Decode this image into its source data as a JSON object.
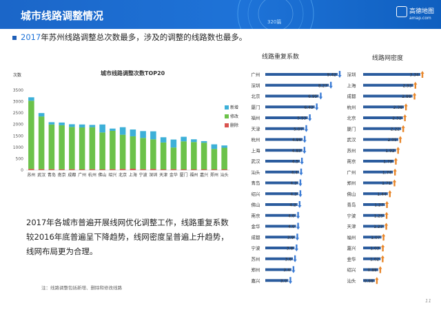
{
  "header": {
    "title": "城市线路调整情况",
    "deco_text": "320篇",
    "logo_name": "高德地图",
    "logo_url": "amap.com"
  },
  "headline": {
    "year": "2017",
    "rest": "年苏州线路调整总次数最多，涉及的调整的线路数也最多。"
  },
  "paragraph": "2017年各城市普遍开展线网优化调整工作，线路重复系数较2016年底普遍呈下降趋势，线网密度呈普遍上升趋势，线网布局更为合理。",
  "footnote": "注：线路调整包括新增、删除和修改线路",
  "page_number": "11",
  "colors": {
    "new": "#3db0d8",
    "modify": "#6cc24a",
    "delete": "#d9534f",
    "bar_blue": "#2b5c9e",
    "down_arrow": "#3a7bd5",
    "up_arrow": "#e8862a"
  },
  "chart_data": [
    {
      "type": "bar",
      "stacked": true,
      "title": "城市线路调整次数TOP20",
      "ylabel": "次数",
      "ylim": [
        0,
        3500
      ],
      "yticks": [
        0,
        500,
        1000,
        1500,
        2000,
        2500,
        3000,
        3500
      ],
      "legend_position": "right",
      "categories": [
        "苏州",
        "武汉",
        "青岛",
        "南京",
        "成都",
        "广州",
        "杭州",
        "佛山",
        "绍兴",
        "北京",
        "上海",
        "宁波",
        "深圳",
        "天津",
        "金华",
        "厦门",
        "福州",
        "嘉兴",
        "郑州",
        "汕头"
      ],
      "series": [
        {
          "name": "删除",
          "values": [
            50,
            40,
            40,
            35,
            40,
            30,
            40,
            30,
            40,
            50,
            60,
            40,
            50,
            30,
            40,
            30,
            30,
            30,
            30,
            30
          ]
        },
        {
          "name": "修改",
          "values": [
            2990,
            2310,
            1960,
            1930,
            1850,
            1840,
            1840,
            1620,
            1680,
            1500,
            1420,
            1370,
            1300,
            1180,
            950,
            1230,
            1200,
            1170,
            900,
            950
          ]
        },
        {
          "name": "新增",
          "values": [
            150,
            150,
            100,
            120,
            120,
            130,
            100,
            350,
            100,
            330,
            300,
            300,
            350,
            230,
            350,
            200,
            120,
            70,
            200,
            100
          ]
        }
      ]
    },
    {
      "type": "bar",
      "orientation": "horizontal",
      "title": "线路重复系数",
      "trend": "down",
      "categories": [
        "广州",
        "深圳",
        "北京",
        "厦门",
        "福州",
        "天津",
        "杭州",
        "上海",
        "武汉",
        "汕头",
        "青岛",
        "绍兴",
        "佛山",
        "南京",
        "金华",
        "成都",
        "宁波",
        "苏州",
        "郑州",
        "嘉兴"
      ],
      "values": [
        9.42,
        8.27,
        6.95,
        6.43,
        5.53,
        5.07,
        4.86,
        4.83,
        4.5,
        4.4,
        4.3,
        4.3,
        4.2,
        4.0,
        4.0,
        3.9,
        3.8,
        3.6,
        3.4,
        3.0
      ],
      "labels": [
        "9.42",
        "8.27",
        "6.95",
        "6.43",
        "5.53",
        "5.07",
        "4.86",
        "4.83",
        "4.5",
        "4.4",
        "4.3",
        "4.3",
        "4.2",
        "4.0",
        "4.0",
        "3.9",
        "3.8",
        "3.6",
        "3.4",
        "3.0"
      ]
    },
    {
      "type": "bar",
      "orientation": "horizontal",
      "title": "线路网密度",
      "trend": "up",
      "categories": [
        "深圳",
        "上海",
        "成都",
        "杭州",
        "北京",
        "厦门",
        "武汉",
        "苏州",
        "南京",
        "广州",
        "郑州",
        "佛山",
        "青岛",
        "宁波",
        "天津",
        "福州",
        "嘉兴",
        "金华",
        "绍兴",
        "汕头"
      ],
      "values": [
        3.34,
        2.93,
        2.88,
        2.38,
        2.32,
        2.22,
        2.05,
        1.92,
        1.79,
        1.74,
        1.71,
        1.44,
        1.27,
        1.25,
        1.23,
        1.07,
        1.03,
        1.02,
        0.88,
        0.68
      ],
      "labels": [
        "3.34",
        "2.93",
        "2.88",
        "2.38",
        "2.32",
        "2.22",
        "2.05",
        "1.92",
        "1.79",
        "1.74",
        "1.71",
        "1.44",
        "1.27",
        "1.25",
        "1.23",
        "1.07",
        "1.03",
        "1.02",
        "0.88",
        "0.68"
      ]
    }
  ]
}
